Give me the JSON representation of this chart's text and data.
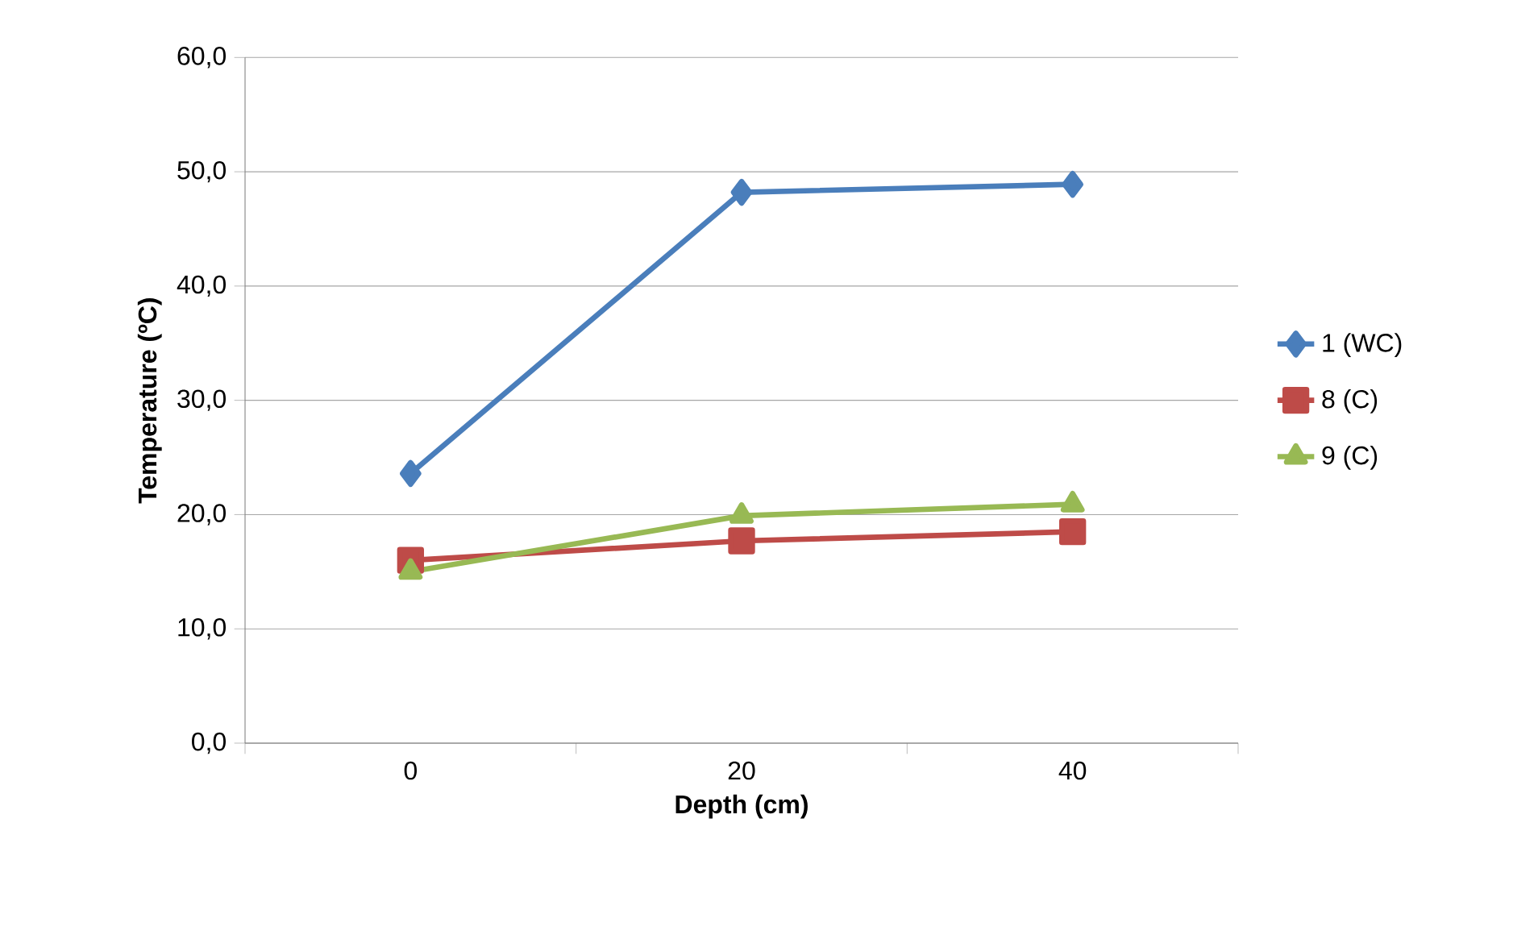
{
  "chart_data": {
    "type": "line",
    "xlabel": "Depth (cm)",
    "ylabel": "Temperature (ºC)",
    "categories": [
      "0",
      "20",
      "40"
    ],
    "series": [
      {
        "name": "1 (WC)",
        "color": "#4a7ebb",
        "marker": "diamond",
        "values": [
          23.6,
          48.2,
          48.9
        ]
      },
      {
        "name": "8 (C)",
        "color": "#be4b48",
        "marker": "square",
        "values": [
          16.0,
          17.7,
          18.5
        ]
      },
      {
        "name": "9 (C)",
        "color": "#98b954",
        "marker": "triangle",
        "values": [
          15.0,
          19.9,
          20.9
        ]
      }
    ],
    "ylim": [
      0,
      60
    ],
    "yticks": [
      {
        "value": 0,
        "label": "0,0"
      },
      {
        "value": 10,
        "label": "10,0"
      },
      {
        "value": 20,
        "label": "20,0"
      },
      {
        "value": 30,
        "label": "30,0"
      },
      {
        "value": 40,
        "label": "40,0"
      },
      {
        "value": 50,
        "label": "50,0"
      },
      {
        "value": 60,
        "label": "60,0"
      }
    ],
    "grid": "y",
    "legend": "right",
    "line_style": "solid"
  }
}
